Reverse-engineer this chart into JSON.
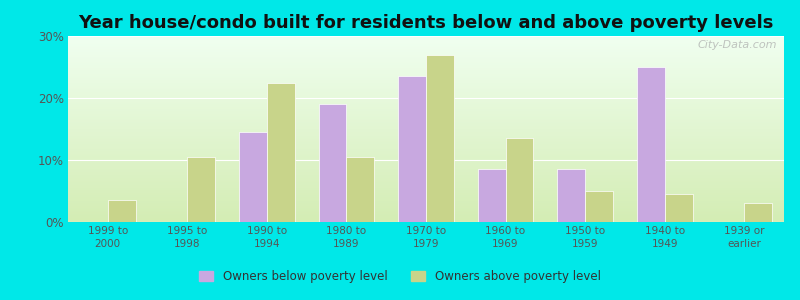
{
  "title": "Year house/condo built for residents below and above poverty levels",
  "categories": [
    "1999 to\n2000",
    "1995 to\n1998",
    "1990 to\n1994",
    "1980 to\n1989",
    "1970 to\n1979",
    "1960 to\n1969",
    "1950 to\n1959",
    "1940 to\n1949",
    "1939 or\nearlier"
  ],
  "below_poverty": [
    0,
    0,
    14.5,
    19.0,
    23.5,
    8.5,
    8.5,
    25.0,
    0
  ],
  "above_poverty": [
    3.5,
    10.5,
    22.5,
    10.5,
    27.0,
    13.5,
    5.0,
    4.5,
    3.0
  ],
  "below_color": "#c8a8e0",
  "above_color": "#c8d48a",
  "bar_width": 0.35,
  "ylim": [
    0,
    30
  ],
  "yticks": [
    0,
    10,
    20,
    30
  ],
  "ytick_labels": [
    "0%",
    "10%",
    "20%",
    "30%"
  ],
  "title_fontsize": 13,
  "legend_below_label": "Owners below poverty level",
  "legend_above_label": "Owners above poverty level",
  "outer_bg_color": "#00e8e8",
  "watermark": "City-Data.com"
}
